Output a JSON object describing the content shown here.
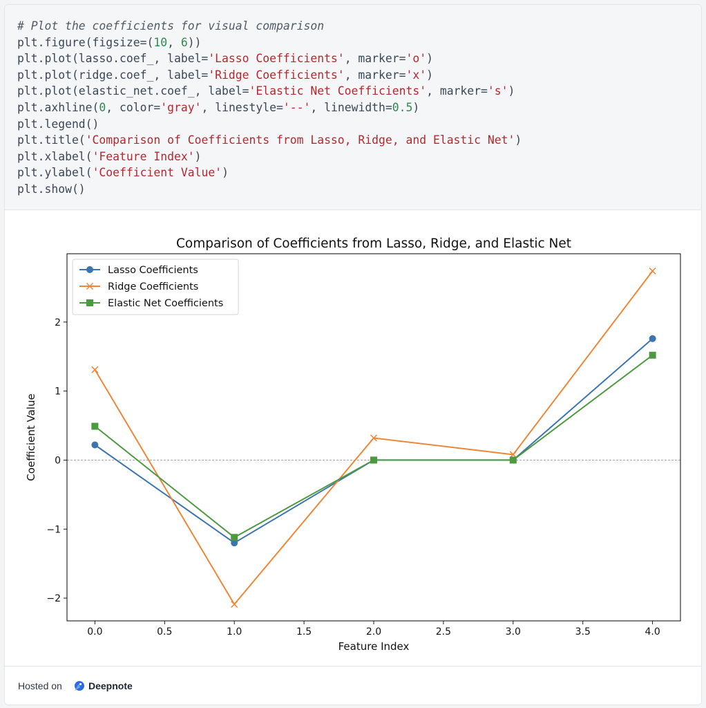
{
  "code_cell": {
    "lines": [
      [
        {
          "t": "comment",
          "s": "# Plot the coefficients for visual comparison"
        }
      ],
      [
        {
          "t": "code",
          "s": "plt.figure(figsize=("
        },
        {
          "t": "num",
          "s": "10"
        },
        {
          "t": "code",
          "s": ", "
        },
        {
          "t": "num",
          "s": "6"
        },
        {
          "t": "code",
          "s": "))"
        }
      ],
      [
        {
          "t": "code",
          "s": "plt.plot(lasso.coef_, label="
        },
        {
          "t": "str",
          "s": "'Lasso Coefficients'"
        },
        {
          "t": "code",
          "s": ", marker="
        },
        {
          "t": "str",
          "s": "'o'"
        },
        {
          "t": "code",
          "s": ")"
        }
      ],
      [
        {
          "t": "code",
          "s": "plt.plot(ridge.coef_, label="
        },
        {
          "t": "str",
          "s": "'Ridge Coefficients'"
        },
        {
          "t": "code",
          "s": ", marker="
        },
        {
          "t": "str",
          "s": "'x'"
        },
        {
          "t": "code",
          "s": ")"
        }
      ],
      [
        {
          "t": "code",
          "s": "plt.plot(elastic_net.coef_, label="
        },
        {
          "t": "str",
          "s": "'Elastic Net Coefficients'"
        },
        {
          "t": "code",
          "s": ", marker="
        },
        {
          "t": "str",
          "s": "'s'"
        },
        {
          "t": "code",
          "s": ")"
        }
      ],
      [
        {
          "t": "code",
          "s": "plt.axhline("
        },
        {
          "t": "num",
          "s": "0"
        },
        {
          "t": "code",
          "s": ", color="
        },
        {
          "t": "str",
          "s": "'gray'"
        },
        {
          "t": "code",
          "s": ", linestyle="
        },
        {
          "t": "str",
          "s": "'--'"
        },
        {
          "t": "code",
          "s": ", linewidth="
        },
        {
          "t": "num",
          "s": "0.5"
        },
        {
          "t": "code",
          "s": ")"
        }
      ],
      [
        {
          "t": "code",
          "s": "plt.legend()"
        }
      ],
      [
        {
          "t": "code",
          "s": "plt.title("
        },
        {
          "t": "str",
          "s": "'Comparison of Coefficients from Lasso, Ridge, and Elastic Net'"
        },
        {
          "t": "code",
          "s": ")"
        }
      ],
      [
        {
          "t": "code",
          "s": "plt.xlabel("
        },
        {
          "t": "str",
          "s": "'Feature Index'"
        },
        {
          "t": "code",
          "s": ")"
        }
      ],
      [
        {
          "t": "code",
          "s": "plt.ylabel("
        },
        {
          "t": "str",
          "s": "'Coefficient Value'"
        },
        {
          "t": "code",
          "s": ")"
        }
      ],
      [
        {
          "t": "code",
          "s": "plt.show()"
        }
      ]
    ]
  },
  "chart_data": {
    "type": "line",
    "title": "Comparison of Coefficients from Lasso, Ridge, and Elastic Net",
    "xlabel": "Feature Index",
    "ylabel": "Coefficient Value",
    "xlim": [
      -0.2,
      4.2
    ],
    "ylim": [
      -2.33,
      2.99
    ],
    "x_ticks": [
      0.0,
      0.5,
      1.0,
      1.5,
      2.0,
      2.5,
      3.0,
      3.5,
      4.0
    ],
    "x_tick_labels": [
      "0.0",
      "0.5",
      "1.0",
      "1.5",
      "2.0",
      "2.5",
      "3.0",
      "3.5",
      "4.0"
    ],
    "y_ticks": [
      -2,
      -1,
      0,
      1,
      2
    ],
    "y_tick_labels": [
      "−2",
      "−1",
      "0",
      "1",
      "2"
    ],
    "grid": false,
    "legend_position": "top-left",
    "reference_line": {
      "y": 0,
      "color": "#999999",
      "style": "dashed"
    },
    "x": [
      0,
      1,
      2,
      3,
      4
    ],
    "series": [
      {
        "name": "Lasso Coefficients",
        "marker": "circle",
        "color": "#3a75b0",
        "values": [
          0.22,
          -1.2,
          0.0,
          0.0,
          1.76
        ]
      },
      {
        "name": "Ridge Coefficients",
        "marker": "x",
        "color": "#ef8636",
        "values": [
          1.31,
          -2.09,
          0.32,
          0.08,
          2.74
        ]
      },
      {
        "name": "Elastic Net Coefficients",
        "marker": "square",
        "color": "#4c9a3f",
        "values": [
          0.49,
          -1.12,
          0.0,
          0.0,
          1.52
        ]
      }
    ]
  },
  "footer": {
    "hosted_text": "Hosted on",
    "brand": "Deepnote",
    "brand_icon": "deepnote-logo-icon"
  }
}
